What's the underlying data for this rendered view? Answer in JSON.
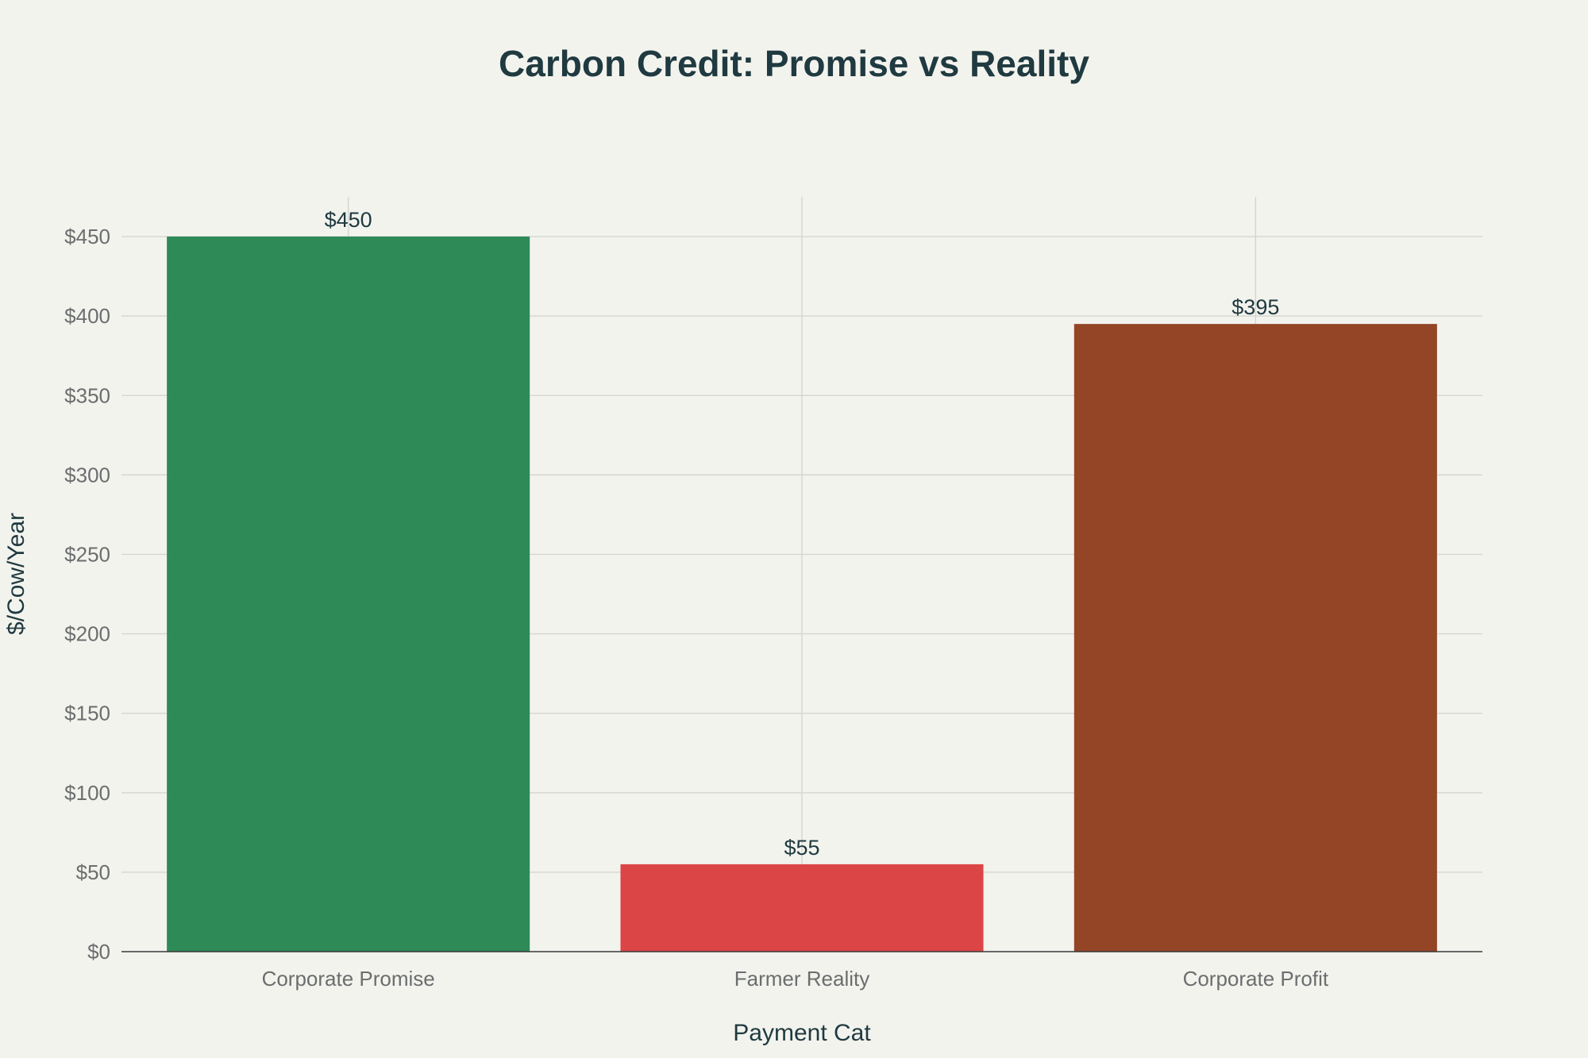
{
  "chart_data": {
    "type": "bar",
    "title": "Carbon Credit: Promise vs Reality",
    "xlabel": "Payment Cat",
    "ylabel": "$/Cow/Year",
    "categories": [
      "Corporate Promise",
      "Farmer Reality",
      "Corporate Profit"
    ],
    "values": [
      450,
      55,
      395
    ],
    "data_labels": [
      "$450",
      "$55",
      "$395"
    ],
    "colors": [
      "#2e8a57",
      "#db4545",
      "#944525"
    ],
    "ylim": [
      0,
      475
    ],
    "y_ticks": [
      0,
      50,
      100,
      150,
      200,
      250,
      300,
      350,
      400,
      450
    ],
    "y_tick_labels": [
      "$0",
      "$50",
      "$100",
      "$150",
      "$200",
      "$250",
      "$300",
      "$350",
      "$400",
      "$450"
    ],
    "grid": true,
    "legend": "none"
  }
}
